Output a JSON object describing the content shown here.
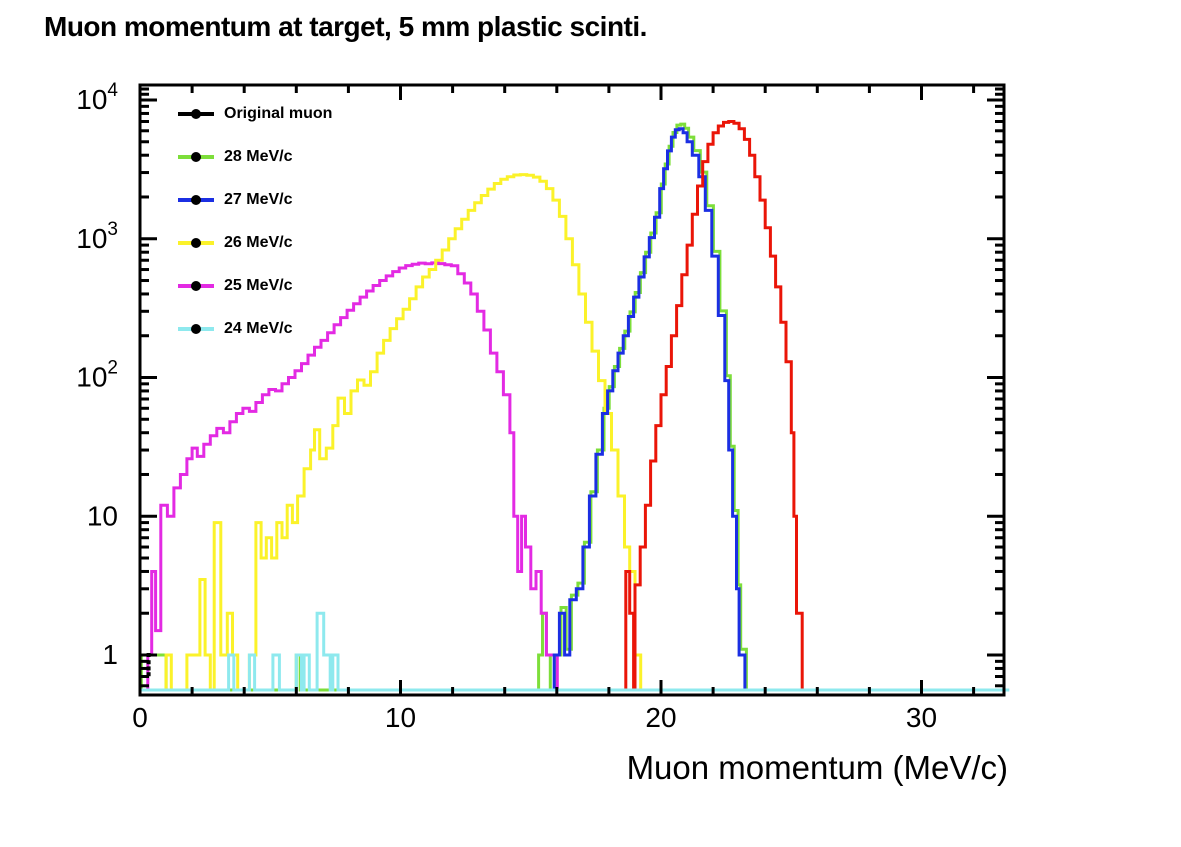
{
  "chart_data": {
    "type": "line",
    "subtype": "step-histograms-log-y",
    "title": "Muon momentum at target, 5 mm plastic scinti.",
    "xlabel": "Muon momentum (MeV/c)",
    "ylabel": "",
    "xlim": [
      0,
      33.2
    ],
    "ylim": [
      0.52,
      13000
    ],
    "y_scale": "log",
    "bin_width_mevc": 0.25,
    "grid": "off",
    "legend_position": "top-left-inside",
    "x_major_ticks": [
      {
        "v": 0,
        "label": "0"
      },
      {
        "v": 10,
        "label": "10"
      },
      {
        "v": 20,
        "label": "20"
      },
      {
        "v": 30,
        "label": "30"
      }
    ],
    "x_minor_tick_step": 2,
    "y_major_ticks": [
      {
        "v": 1,
        "label": "1",
        "exp": ""
      },
      {
        "v": 10,
        "label": "10",
        "exp": ""
      },
      {
        "v": 100,
        "label": "10",
        "exp": "2"
      },
      {
        "v": 1000,
        "label": "10",
        "exp": "3"
      },
      {
        "v": 10000,
        "label": "10",
        "exp": "4"
      }
    ],
    "extra_y_minor_ticks": [
      11000,
      12000
    ],
    "legend": [
      {
        "label": "Original muon",
        "color": "#000000"
      },
      {
        "label": "28 MeV/c",
        "color": "#7dde3a"
      },
      {
        "label": "27 MeV/c",
        "color": "#1b2fe3"
      },
      {
        "label": "26 MeV/c",
        "color": "#fbf22a"
      },
      {
        "label": "25 MeV/c",
        "color": "#e32ae3"
      },
      {
        "label": "24 MeV/c",
        "color": "#8ee9ee"
      }
    ],
    "black_marks": {
      "name": "Original muon",
      "x": 0.33,
      "values": [
        1.0,
        0.85,
        0.72,
        0.6
      ]
    },
    "series": [
      {
        "name": "28 MeV/c",
        "color": "#7dde3a",
        "points": [
          [
            0.05,
            1
          ],
          [
            0.2,
            1
          ],
          [
            0.35,
            1
          ],
          [
            0.5,
            1
          ],
          [
            0.65,
            1
          ],
          [
            0.8,
            1
          ],
          [
            0.95,
            1
          ],
          [
            1.0,
            0
          ],
          [
            6.0,
            1
          ],
          [
            6.15,
            0
          ],
          [
            15.3,
            1
          ],
          [
            15.45,
            2
          ],
          [
            15.6,
            1
          ],
          [
            15.75,
            0
          ],
          [
            15.96,
            1
          ],
          [
            16.16,
            2.2
          ],
          [
            16.36,
            1.1
          ],
          [
            16.56,
            2.7
          ],
          [
            16.81,
            3.3
          ],
          [
            17.06,
            6.5
          ],
          [
            17.31,
            15
          ],
          [
            17.56,
            30
          ],
          [
            17.81,
            60
          ],
          [
            18.01,
            86
          ],
          [
            18.21,
            120
          ],
          [
            18.41,
            162
          ],
          [
            18.61,
            216
          ],
          [
            18.81,
            297
          ],
          [
            19.01,
            410
          ],
          [
            19.21,
            570
          ],
          [
            19.41,
            800
          ],
          [
            19.61,
            1100
          ],
          [
            19.81,
            1540
          ],
          [
            20.01,
            2480
          ],
          [
            20.16,
            3460
          ],
          [
            20.31,
            4640
          ],
          [
            20.46,
            5830
          ],
          [
            20.61,
            6590
          ],
          [
            20.76,
            6700
          ],
          [
            20.91,
            6260
          ],
          [
            21.06,
            5400
          ],
          [
            21.26,
            4320
          ],
          [
            21.51,
            3020
          ],
          [
            21.76,
            1730
          ],
          [
            22.01,
            810
          ],
          [
            22.26,
            302
          ],
          [
            22.51,
            103
          ],
          [
            22.66,
            32
          ],
          [
            22.81,
            11
          ],
          [
            22.96,
            3.2
          ],
          [
            23.06,
            1.1
          ]
        ]
      },
      {
        "name": "25 MeV/c",
        "color": "#e32ae3",
        "points": [
          [
            0.3,
            1
          ],
          [
            0.45,
            4
          ],
          [
            0.6,
            1.5
          ],
          [
            0.8,
            12
          ],
          [
            1.05,
            10
          ],
          [
            1.3,
            16
          ],
          [
            1.55,
            20
          ],
          [
            1.8,
            26
          ],
          [
            2.0,
            31
          ],
          [
            2.2,
            27
          ],
          [
            2.45,
            33
          ],
          [
            2.7,
            38
          ],
          [
            2.95,
            43
          ],
          [
            3.2,
            40
          ],
          [
            3.45,
            48
          ],
          [
            3.7,
            55
          ],
          [
            3.95,
            60
          ],
          [
            4.2,
            57
          ],
          [
            4.45,
            66
          ],
          [
            4.7,
            75
          ],
          [
            4.95,
            82
          ],
          [
            5.2,
            80
          ],
          [
            5.45,
            90
          ],
          [
            5.7,
            100
          ],
          [
            5.95,
            112
          ],
          [
            6.2,
            126
          ],
          [
            6.45,
            145
          ],
          [
            6.7,
            165
          ],
          [
            6.95,
            185
          ],
          [
            7.2,
            210
          ],
          [
            7.45,
            240
          ],
          [
            7.7,
            270
          ],
          [
            7.95,
            305
          ],
          [
            8.2,
            340
          ],
          [
            8.45,
            380
          ],
          [
            8.7,
            420
          ],
          [
            8.95,
            460
          ],
          [
            9.2,
            500
          ],
          [
            9.45,
            540
          ],
          [
            9.7,
            580
          ],
          [
            9.95,
            615
          ],
          [
            10.2,
            640
          ],
          [
            10.45,
            655
          ],
          [
            10.7,
            668
          ],
          [
            10.95,
            660
          ],
          [
            11.2,
            670
          ],
          [
            11.45,
            662
          ],
          [
            11.7,
            650
          ],
          [
            11.95,
            638
          ],
          [
            12.2,
            560
          ],
          [
            12.45,
            480
          ],
          [
            12.7,
            400
          ],
          [
            12.95,
            300
          ],
          [
            13.2,
            220
          ],
          [
            13.45,
            150
          ],
          [
            13.7,
            110
          ],
          [
            13.95,
            75
          ],
          [
            14.2,
            40
          ],
          [
            14.35,
            10
          ],
          [
            14.5,
            4
          ],
          [
            14.65,
            10
          ],
          [
            14.8,
            6
          ],
          [
            15.0,
            3
          ],
          [
            15.2,
            4
          ],
          [
            15.4,
            2
          ],
          [
            15.6,
            1
          ],
          [
            15.8,
            1
          ]
        ]
      },
      {
        "name": "26 MeV/c",
        "color": "#fbf22a",
        "points": [
          [
            1.0,
            1
          ],
          [
            1.2,
            0
          ],
          [
            1.8,
            1
          ],
          [
            2.05,
            1
          ],
          [
            2.3,
            3.5
          ],
          [
            2.5,
            1
          ],
          [
            2.7,
            0
          ],
          [
            2.85,
            9
          ],
          [
            3.1,
            1
          ],
          [
            3.35,
            2
          ],
          [
            3.55,
            1
          ],
          [
            3.75,
            0
          ],
          [
            4.2,
            1
          ],
          [
            4.45,
            9
          ],
          [
            4.65,
            5
          ],
          [
            4.85,
            7
          ],
          [
            5.05,
            5
          ],
          [
            5.25,
            9
          ],
          [
            5.45,
            7
          ],
          [
            5.65,
            12
          ],
          [
            5.85,
            9
          ],
          [
            6.05,
            14
          ],
          [
            6.3,
            22
          ],
          [
            6.55,
            30
          ],
          [
            6.7,
            42
          ],
          [
            6.9,
            26
          ],
          [
            7.15,
            31
          ],
          [
            7.4,
            45
          ],
          [
            7.6,
            71
          ],
          [
            7.85,
            55
          ],
          [
            8.1,
            80
          ],
          [
            8.35,
            96
          ],
          [
            8.6,
            88
          ],
          [
            8.85,
            110
          ],
          [
            9.1,
            150
          ],
          [
            9.35,
            185
          ],
          [
            9.6,
            225
          ],
          [
            9.85,
            265
          ],
          [
            10.1,
            310
          ],
          [
            10.35,
            370
          ],
          [
            10.6,
            450
          ],
          [
            10.85,
            530
          ],
          [
            11.1,
            600
          ],
          [
            11.35,
            700
          ],
          [
            11.6,
            830
          ],
          [
            11.85,
            1000
          ],
          [
            12.1,
            1180
          ],
          [
            12.35,
            1380
          ],
          [
            12.6,
            1600
          ],
          [
            12.85,
            1820
          ],
          [
            13.1,
            2050
          ],
          [
            13.35,
            2280
          ],
          [
            13.6,
            2500
          ],
          [
            13.85,
            2680
          ],
          [
            14.1,
            2800
          ],
          [
            14.35,
            2880
          ],
          [
            14.6,
            2900
          ],
          [
            14.85,
            2870
          ],
          [
            15.1,
            2780
          ],
          [
            15.35,
            2600
          ],
          [
            15.6,
            2300
          ],
          [
            15.85,
            1900
          ],
          [
            16.1,
            1450
          ],
          [
            16.35,
            1000
          ],
          [
            16.6,
            650
          ],
          [
            16.85,
            400
          ],
          [
            17.1,
            250
          ],
          [
            17.35,
            155
          ],
          [
            17.6,
            95
          ],
          [
            17.85,
            55
          ],
          [
            18.1,
            30
          ],
          [
            18.35,
            14
          ],
          [
            18.6,
            6
          ],
          [
            18.8,
            4
          ],
          [
            19.0,
            1
          ]
        ]
      },
      {
        "name": "27 MeV/c",
        "color": "#1b2fe3",
        "points": [
          [
            15.9,
            1
          ],
          [
            16.1,
            2
          ],
          [
            16.3,
            1
          ],
          [
            16.5,
            2.5
          ],
          [
            16.75,
            3
          ],
          [
            17.0,
            6
          ],
          [
            17.25,
            14
          ],
          [
            17.5,
            28
          ],
          [
            17.75,
            55
          ],
          [
            17.95,
            80
          ],
          [
            18.15,
            112
          ],
          [
            18.35,
            150
          ],
          [
            18.55,
            200
          ],
          [
            18.75,
            275
          ],
          [
            18.95,
            380
          ],
          [
            19.15,
            530
          ],
          [
            19.35,
            740
          ],
          [
            19.55,
            1020
          ],
          [
            19.75,
            1430
          ],
          [
            19.95,
            2300
          ],
          [
            20.1,
            3200
          ],
          [
            20.25,
            4300
          ],
          [
            20.4,
            5400
          ],
          [
            20.55,
            6100
          ],
          [
            20.7,
            6200
          ],
          [
            20.85,
            5800
          ],
          [
            21.0,
            5000
          ],
          [
            21.2,
            4000
          ],
          [
            21.45,
            2800
          ],
          [
            21.7,
            1600
          ],
          [
            21.95,
            750
          ],
          [
            22.2,
            280
          ],
          [
            22.45,
            95
          ],
          [
            22.6,
            30
          ],
          [
            22.75,
            10
          ],
          [
            22.9,
            3
          ],
          [
            23.0,
            1
          ]
        ]
      },
      {
        "name": "Original muon",
        "color": "#ea1508",
        "points": [
          [
            18.65,
            4
          ],
          [
            18.8,
            2
          ],
          [
            18.95,
            0
          ],
          [
            19.0,
            3.2
          ],
          [
            19.2,
            6
          ],
          [
            19.4,
            12
          ],
          [
            19.6,
            25
          ],
          [
            19.8,
            45
          ],
          [
            20.0,
            75
          ],
          [
            20.2,
            120
          ],
          [
            20.4,
            200
          ],
          [
            20.6,
            330
          ],
          [
            20.8,
            550
          ],
          [
            21.0,
            900
          ],
          [
            21.2,
            1500
          ],
          [
            21.4,
            2400
          ],
          [
            21.6,
            3600
          ],
          [
            21.8,
            4800
          ],
          [
            22.0,
            5800
          ],
          [
            22.2,
            6500
          ],
          [
            22.4,
            6900
          ],
          [
            22.6,
            7000
          ],
          [
            22.8,
            6800
          ],
          [
            23.0,
            6200
          ],
          [
            23.2,
            5200
          ],
          [
            23.4,
            4000
          ],
          [
            23.6,
            2800
          ],
          [
            23.8,
            1900
          ],
          [
            24.0,
            1200
          ],
          [
            24.2,
            750
          ],
          [
            24.4,
            450
          ],
          [
            24.6,
            250
          ],
          [
            24.8,
            130
          ],
          [
            25.0,
            40
          ],
          [
            25.1,
            10
          ],
          [
            25.2,
            2
          ]
        ]
      },
      {
        "name": "24 MeV/c",
        "color": "#8ee9ee",
        "points": [
          [
            0,
            0
          ],
          [
            3.4,
            1
          ],
          [
            3.6,
            0
          ],
          [
            4.2,
            1
          ],
          [
            4.4,
            0
          ],
          [
            5.1,
            1
          ],
          [
            5.35,
            0
          ],
          [
            6.0,
            1
          ],
          [
            6.2,
            0
          ],
          [
            6.3,
            1
          ],
          [
            6.5,
            0
          ],
          [
            6.8,
            2
          ],
          [
            7.05,
            1
          ],
          [
            7.3,
            0
          ],
          [
            7.4,
            1
          ],
          [
            7.6,
            0
          ],
          [
            33.15,
            0
          ]
        ]
      }
    ]
  }
}
